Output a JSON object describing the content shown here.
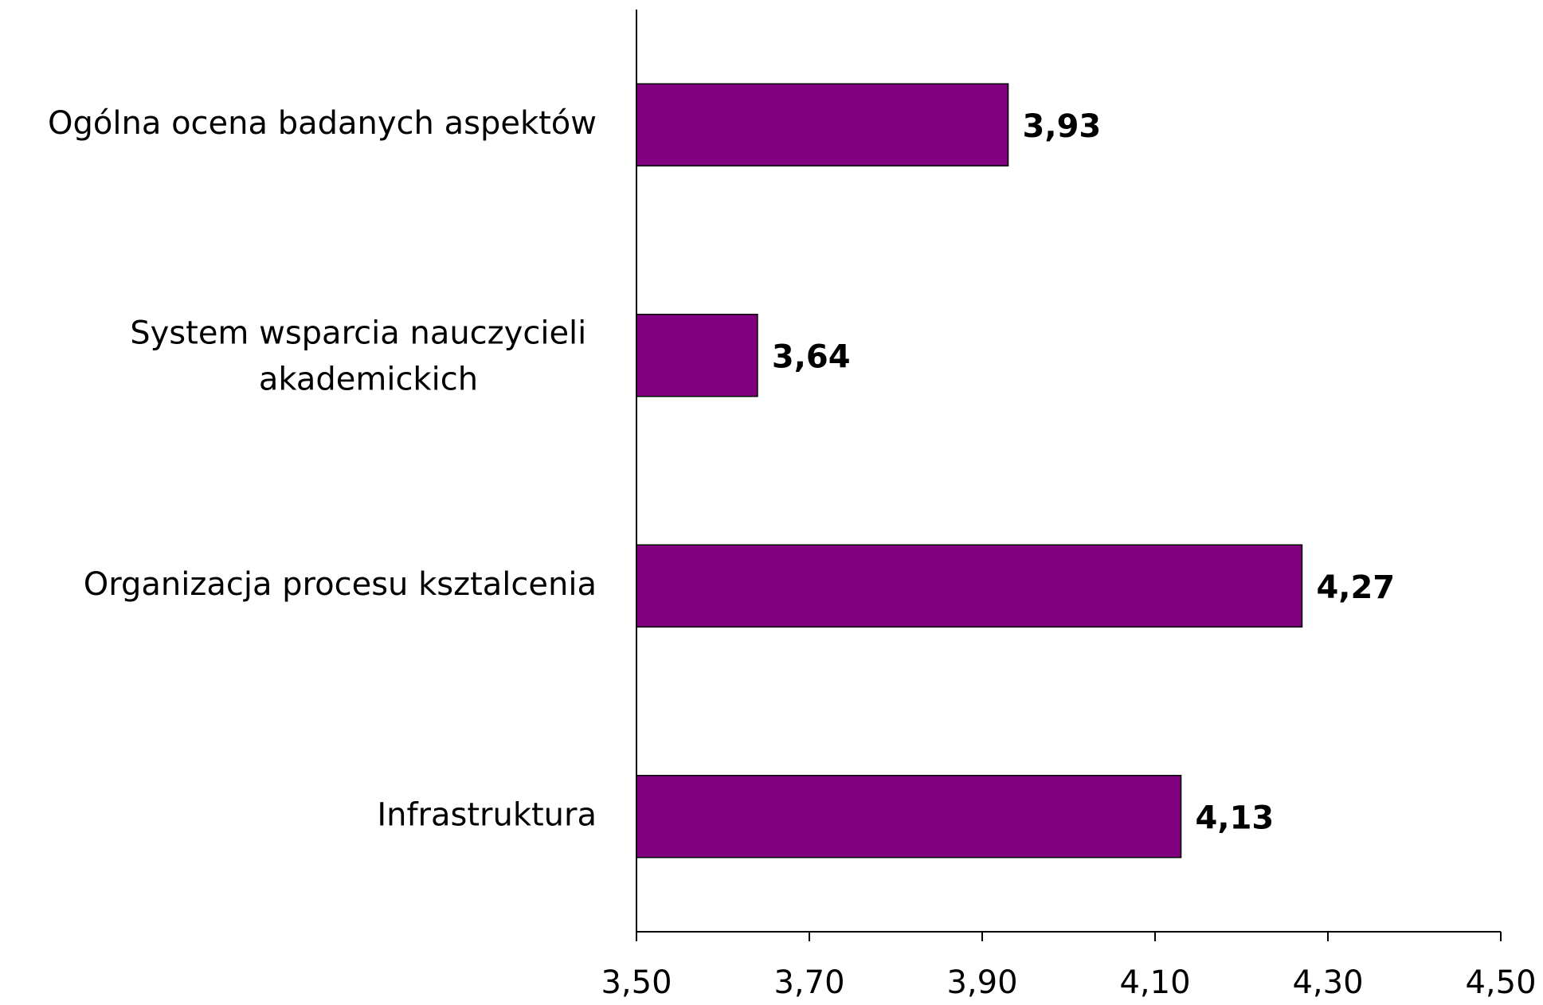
{
  "chart_data": {
    "type": "bar",
    "orientation": "horizontal",
    "categories": [
      "Ogólna ocena badanych aspektów",
      "System wsparcia nauczycieli akademickich",
      "Organizacja procesu ksztalcenia",
      "Infrastruktura"
    ],
    "values": [
      3.93,
      3.64,
      4.27,
      4.13
    ],
    "value_labels": [
      "3,93",
      "3,64",
      "4,27",
      "4,13"
    ],
    "color": "#800080",
    "xlim": [
      3.5,
      4.5
    ],
    "xticks": [
      {
        "value": 3.5,
        "label": "3,50"
      },
      {
        "value": 3.7,
        "label": "3,70"
      },
      {
        "value": 3.9,
        "label": "3,90"
      },
      {
        "value": 4.1,
        "label": "4,10"
      },
      {
        "value": 4.3,
        "label": "4,30"
      },
      {
        "value": 4.5,
        "label": "4,50"
      }
    ],
    "grid": false
  }
}
